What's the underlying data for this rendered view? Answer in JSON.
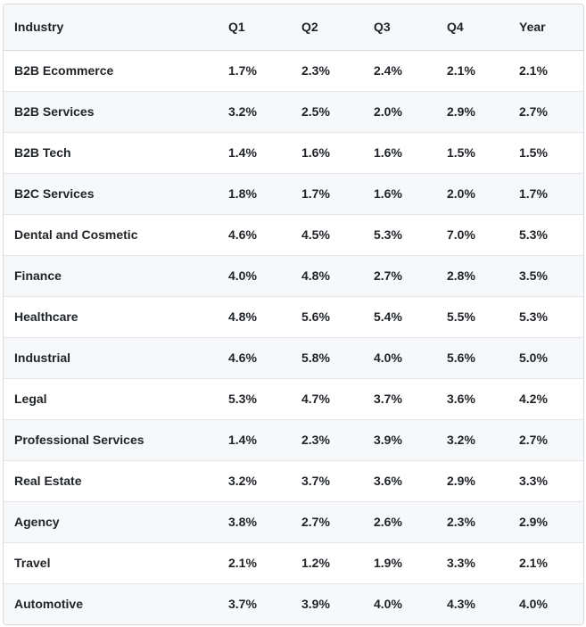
{
  "table": {
    "headers": [
      "Industry",
      "Q1",
      "Q2",
      "Q3",
      "Q4",
      "Year"
    ],
    "rows": [
      [
        "B2B Ecommerce",
        "1.7%",
        "2.3%",
        "2.4%",
        "2.1%",
        "2.1%"
      ],
      [
        "B2B Services",
        "3.2%",
        "2.5%",
        "2.0%",
        "2.9%",
        "2.7%"
      ],
      [
        "B2B Tech",
        "1.4%",
        "1.6%",
        "1.6%",
        "1.5%",
        "1.5%"
      ],
      [
        "B2C Services",
        "1.8%",
        "1.7%",
        "1.6%",
        "2.0%",
        "1.7%"
      ],
      [
        "Dental and Cosmetic",
        "4.6%",
        "4.5%",
        "5.3%",
        "7.0%",
        "5.3%"
      ],
      [
        "Finance",
        "4.0%",
        "4.8%",
        "2.7%",
        "2.8%",
        "3.5%"
      ],
      [
        "Healthcare",
        "4.8%",
        "5.6%",
        "5.4%",
        "5.5%",
        "5.3%"
      ],
      [
        "Industrial",
        "4.6%",
        "5.8%",
        "4.0%",
        "5.6%",
        "5.0%"
      ],
      [
        "Legal",
        "5.3%",
        "4.7%",
        "3.7%",
        "3.6%",
        "4.2%"
      ],
      [
        "Professional Services",
        "1.4%",
        "2.3%",
        "3.9%",
        "3.2%",
        "2.7%"
      ],
      [
        "Real Estate",
        "3.2%",
        "3.7%",
        "3.6%",
        "2.9%",
        "3.3%"
      ],
      [
        "Agency",
        "3.8%",
        "2.7%",
        "2.6%",
        "2.3%",
        "2.9%"
      ],
      [
        "Travel",
        "2.1%",
        "1.2%",
        "1.9%",
        "3.3%",
        "2.1%"
      ],
      [
        "Automotive",
        "3.7%",
        "3.9%",
        "4.0%",
        "4.3%",
        "4.0%"
      ]
    ]
  }
}
